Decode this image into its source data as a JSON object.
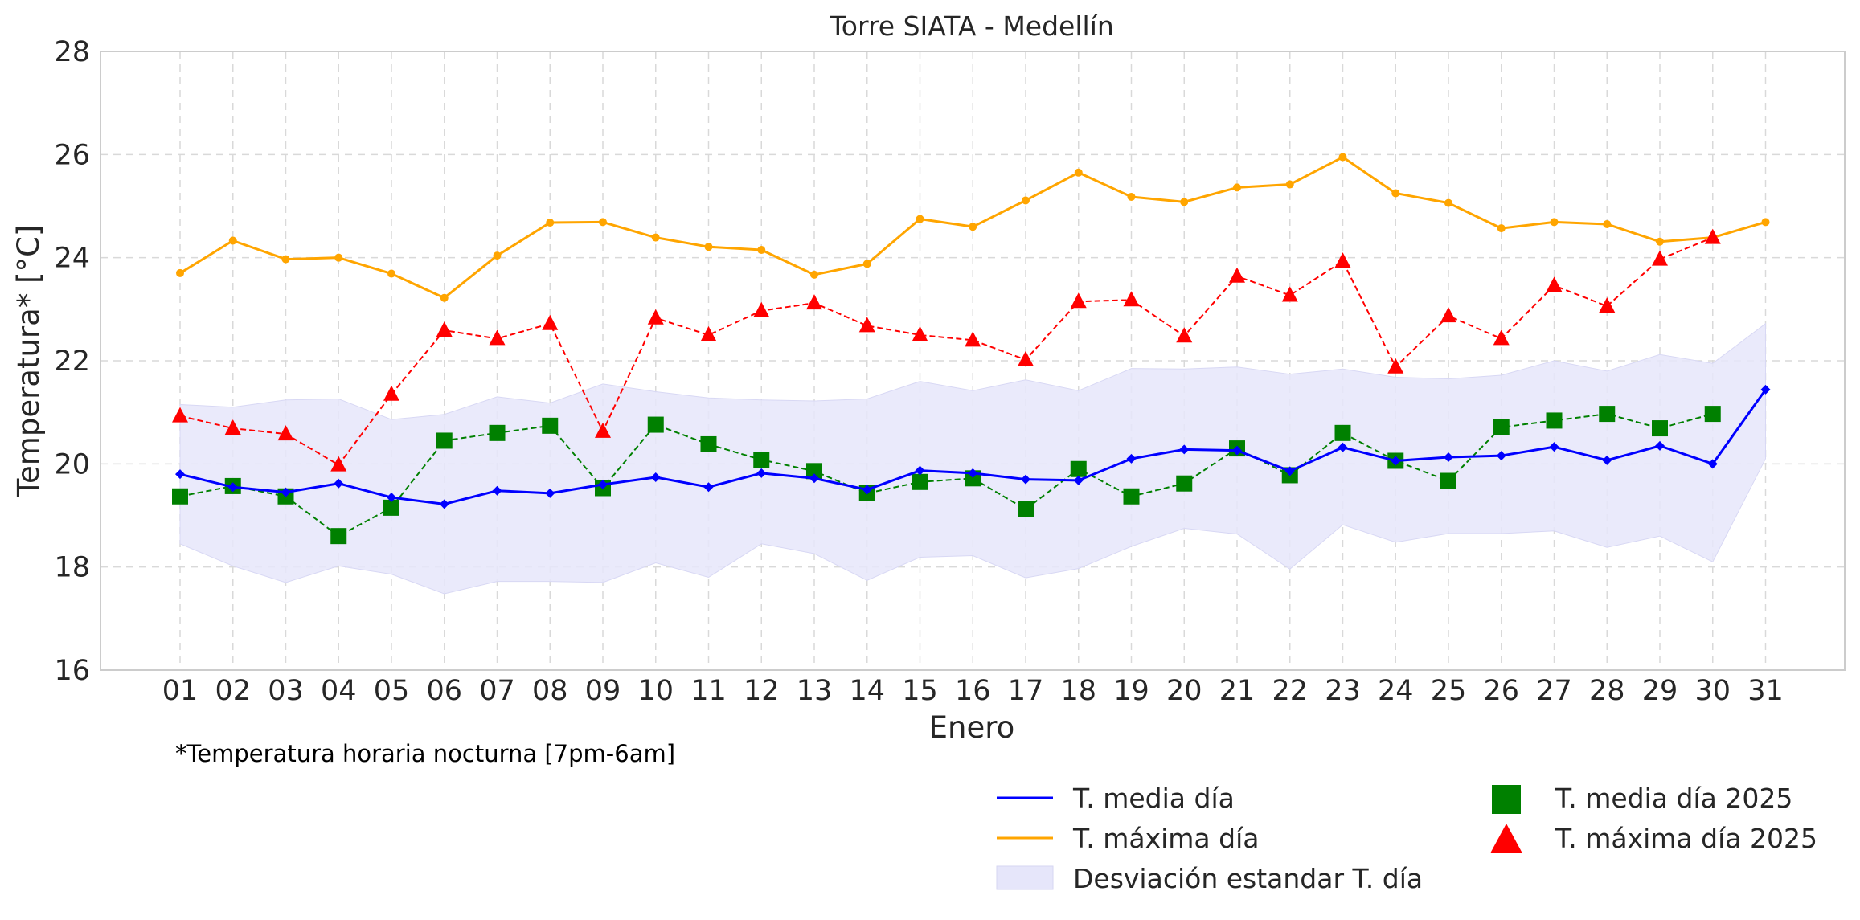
{
  "chart_data": {
    "type": "line",
    "title": "Torre SIATA - Medellín",
    "xlabel": "Enero",
    "ylabel": "Temperatura* [°C]",
    "note": "*Temperatura horaria nocturna [7pm-6am]",
    "ylim": [
      16,
      28
    ],
    "yticks": [
      16,
      18,
      20,
      22,
      24,
      26,
      28
    ],
    "grid": true,
    "legend_placement": "bottom-right, below plot",
    "categories": [
      "01",
      "02",
      "03",
      "04",
      "05",
      "06",
      "07",
      "08",
      "09",
      "10",
      "11",
      "12",
      "13",
      "14",
      "15",
      "16",
      "17",
      "18",
      "19",
      "20",
      "21",
      "22",
      "23",
      "24",
      "25",
      "26",
      "27",
      "28",
      "29",
      "30",
      "31"
    ],
    "series": [
      {
        "name": "T. media día",
        "style": "solid-line-diamond",
        "color": "#0000ff",
        "values": [
          19.8,
          19.55,
          19.45,
          19.62,
          19.35,
          19.22,
          19.48,
          19.43,
          19.6,
          19.74,
          19.55,
          19.82,
          19.72,
          19.5,
          19.87,
          19.82,
          19.7,
          19.68,
          20.1,
          20.28,
          20.26,
          19.86,
          20.32,
          20.06,
          20.13,
          20.16,
          20.33,
          20.07,
          20.35,
          20.0,
          21.44
        ]
      },
      {
        "name": "T. máxima día",
        "style": "solid-line-dot",
        "color": "#ffa500",
        "values": [
          23.7,
          24.33,
          23.97,
          24.0,
          23.69,
          23.22,
          24.04,
          24.68,
          24.69,
          24.39,
          24.21,
          24.15,
          23.67,
          23.88,
          24.75,
          24.6,
          25.11,
          25.65,
          25.18,
          25.08,
          25.36,
          25.42,
          25.95,
          25.25,
          25.06,
          24.57,
          24.69,
          24.65,
          24.31,
          24.39,
          24.69
        ]
      },
      {
        "name": "T. media día 2025",
        "style": "dashed-line-square",
        "color": "#008000",
        "values": [
          19.37,
          19.57,
          19.37,
          18.6,
          19.15,
          20.45,
          20.6,
          20.74,
          19.53,
          20.76,
          20.38,
          20.08,
          19.86,
          19.43,
          19.65,
          19.72,
          19.12,
          19.9,
          19.37,
          19.62,
          20.3,
          19.78,
          20.6,
          20.06,
          19.67,
          20.71,
          20.84,
          20.97,
          20.69,
          20.97,
          null
        ]
      },
      {
        "name": "T. máxima día 2025",
        "style": "dashed-line-triangle",
        "color": "#ff0000",
        "values": [
          20.93,
          20.69,
          20.58,
          19.98,
          21.35,
          22.59,
          22.43,
          22.72,
          20.63,
          22.83,
          22.5,
          22.97,
          23.12,
          22.68,
          22.5,
          22.4,
          22.02,
          23.15,
          23.18,
          22.48,
          23.64,
          23.27,
          23.93,
          21.88,
          22.87,
          22.43,
          23.46,
          23.06,
          23.97,
          24.39,
          null
        ]
      }
    ],
    "band": {
      "name": "Desviación estandar T. día",
      "color": "#e6e6fa",
      "upper": [
        21.15,
        21.1,
        21.24,
        21.26,
        20.86,
        20.96,
        21.3,
        21.18,
        21.55,
        21.4,
        21.28,
        21.24,
        21.22,
        21.26,
        21.6,
        21.42,
        21.63,
        21.42,
        21.85,
        21.84,
        21.88,
        21.74,
        21.84,
        21.68,
        21.65,
        21.72,
        22.0,
        21.8,
        22.12,
        21.95,
        22.72
      ],
      "lower": [
        18.45,
        18.02,
        17.7,
        18.02,
        17.86,
        17.48,
        17.72,
        17.72,
        17.7,
        18.08,
        17.8,
        18.45,
        18.26,
        17.74,
        18.19,
        18.22,
        17.79,
        17.97,
        18.4,
        18.75,
        18.64,
        17.96,
        18.82,
        18.48,
        18.65,
        18.65,
        18.7,
        18.38,
        18.6,
        18.1,
        20.1
      ]
    }
  }
}
